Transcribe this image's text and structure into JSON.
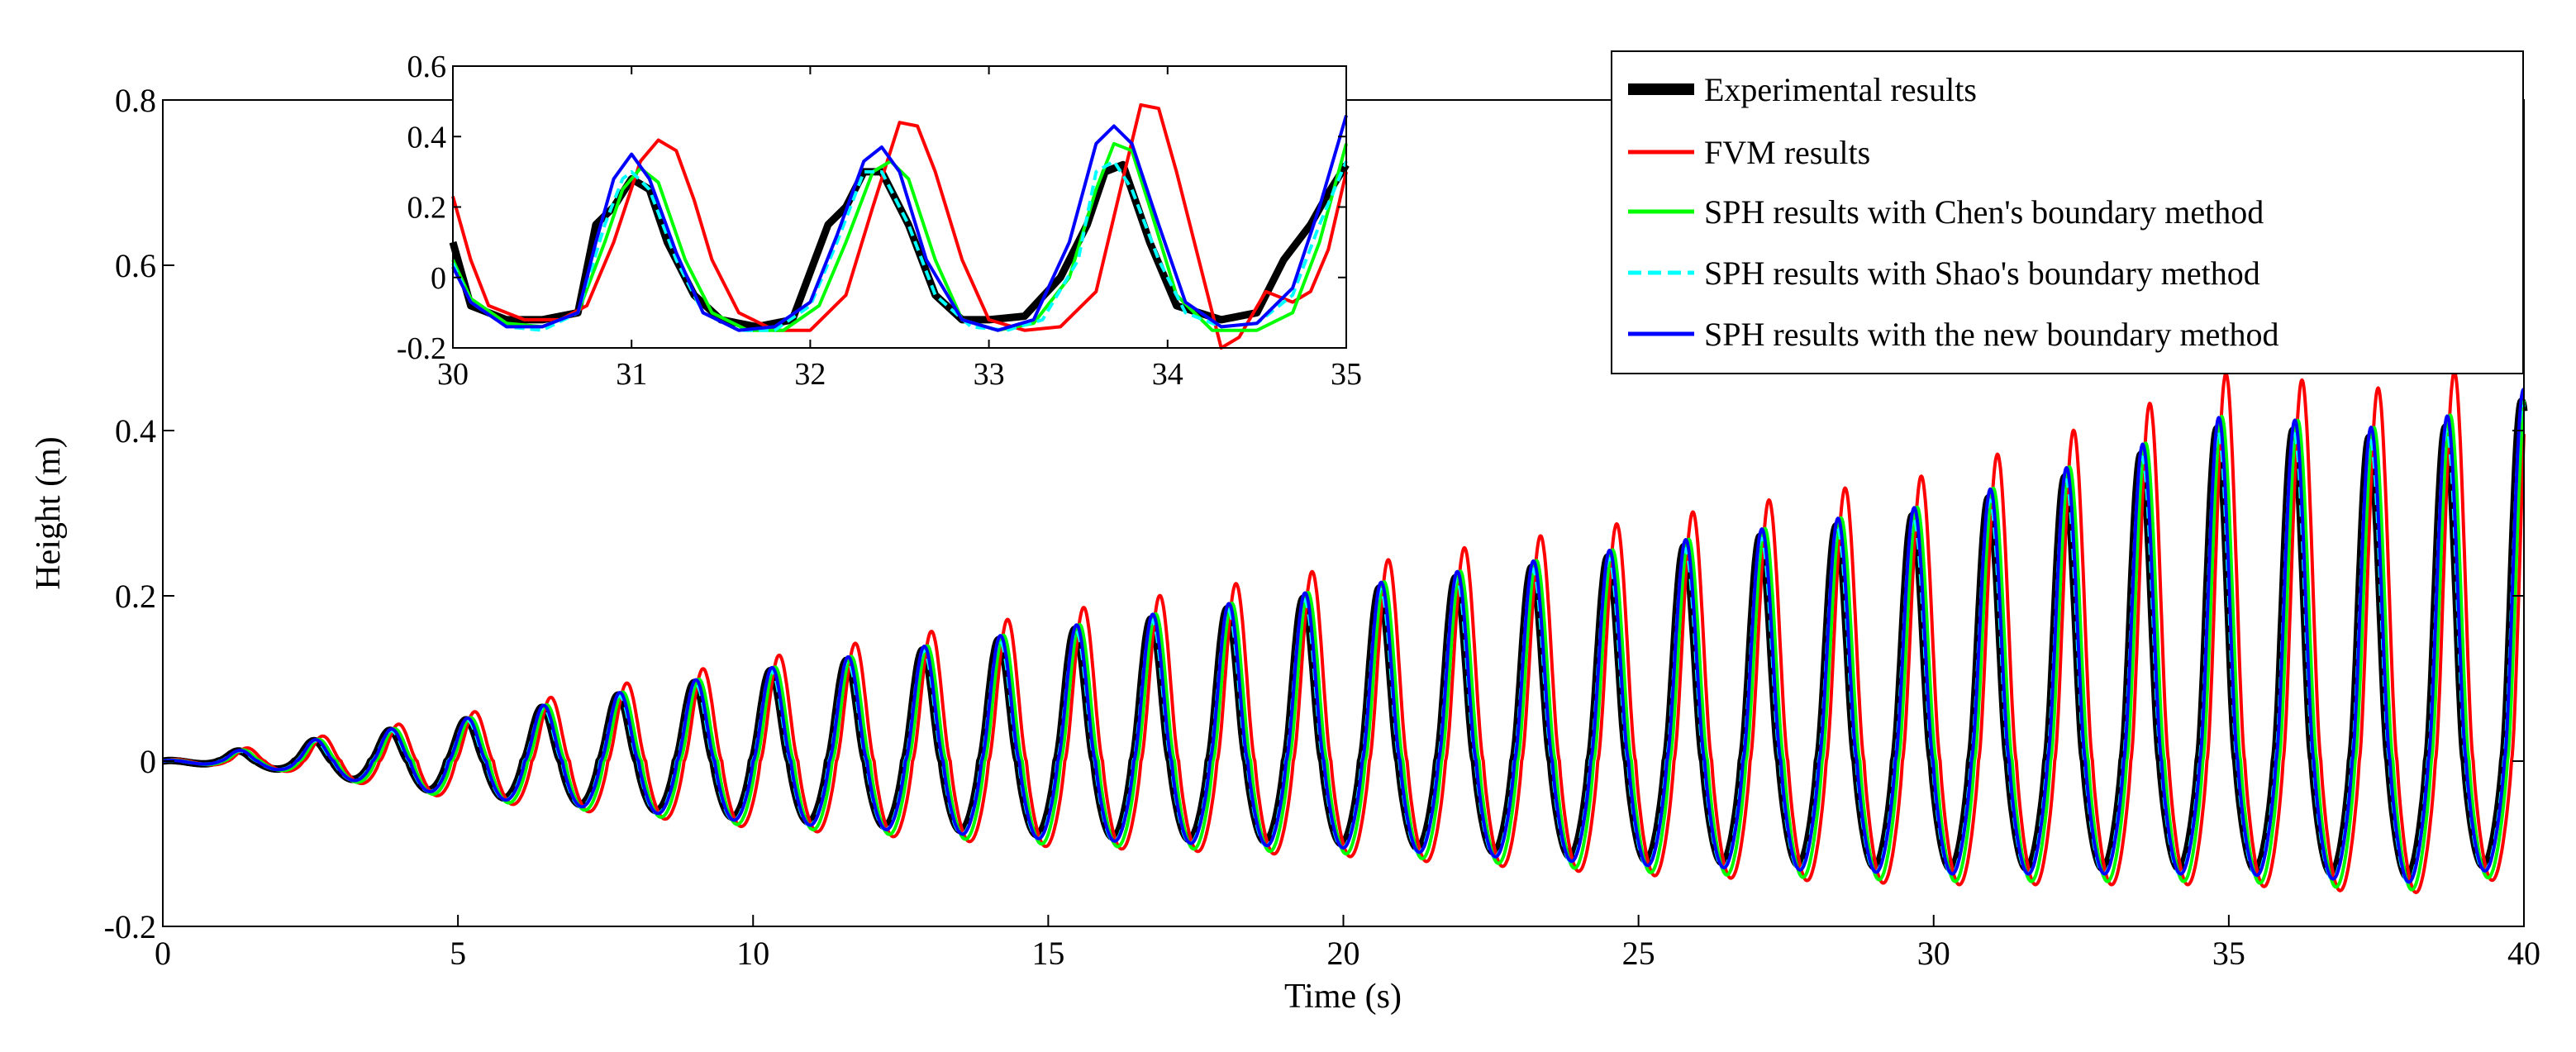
{
  "chart_data": [
    {
      "id": "main",
      "type": "line",
      "title": "",
      "xlabel": "Time (s)",
      "ylabel": "Height (m)",
      "xlim": [
        0,
        40
      ],
      "ylim": [
        -0.2,
        0.8
      ],
      "xticks": [
        0,
        5,
        10,
        15,
        20,
        25,
        30,
        35,
        40
      ],
      "yticks": [
        -0.2,
        0,
        0.2,
        0.4,
        0.6,
        0.8
      ],
      "xtick_labels": [
        "0",
        "5",
        "10",
        "15",
        "20",
        "25",
        "30",
        "35",
        "40"
      ],
      "ytick_labels": [
        "-0.2",
        "0",
        "0.2",
        "0.4",
        "0.6",
        "0.8"
      ],
      "grid": false,
      "legend_position": "top-right",
      "wave": {
        "period_s": 1.29,
        "amplitude_envelope_t": [
          0,
          2,
          5,
          10,
          15,
          20,
          25,
          30,
          33,
          35,
          38,
          40
        ],
        "amplitude_envelope_crest_m": [
          0.0,
          0.02,
          0.05,
          0.11,
          0.16,
          0.21,
          0.26,
          0.31,
          0.37,
          0.42,
          0.4,
          0.45
        ],
        "trough_envelope_t": [
          0,
          2,
          5,
          10,
          15,
          20,
          25,
          30,
          33,
          35,
          38,
          40
        ],
        "trough_envelope_m": [
          0.0,
          -0.01,
          -0.04,
          -0.07,
          -0.09,
          -0.1,
          -0.12,
          -0.13,
          -0.13,
          -0.13,
          -0.14,
          -0.12
        ]
      },
      "series": [
        {
          "name": "Experimental results",
          "color": "#000000",
          "dash": "solid",
          "phase_shift_s": -0.03,
          "crest_scale": 0.97,
          "trough_scale": 1.0
        },
        {
          "name": "FVM results",
          "color": "#ff0000",
          "dash": "solid",
          "phase_shift_s": 0.12,
          "crest_scale": 1.12,
          "trough_scale": 1.15
        },
        {
          "name": "SPH results with Chen's boundary method",
          "color": "#00ff00",
          "dash": "solid",
          "phase_shift_s": 0.05,
          "crest_scale": 1.0,
          "trough_scale": 1.12
        },
        {
          "name": "SPH results with Shao's boundary method",
          "color": "#00ffff",
          "dash": "dashed",
          "phase_shift_s": -0.01,
          "crest_scale": 0.96,
          "trough_scale": 1.05
        },
        {
          "name": "SPH results with the new boundary method",
          "color": "#0000ff",
          "dash": "solid",
          "phase_shift_s": 0.0,
          "crest_scale": 1.0,
          "trough_scale": 1.05
        }
      ]
    },
    {
      "id": "inset",
      "type": "line",
      "title": "",
      "xlabel": "",
      "ylabel": "",
      "xlim": [
        30,
        35
      ],
      "ylim": [
        -0.2,
        0.6
      ],
      "xticks": [
        30,
        31,
        32,
        33,
        34,
        35
      ],
      "yticks": [
        -0.2,
        0,
        0.2,
        0.4,
        0.6
      ],
      "xtick_labels": [
        "30",
        "31",
        "32",
        "33",
        "34",
        "35"
      ],
      "ytick_labels": [
        "-0.2",
        "0",
        "0.2",
        "0.4",
        "0.6"
      ],
      "grid": false,
      "series": [
        {
          "name": "Experimental results",
          "color": "#000000",
          "x": [
            30.0,
            30.1,
            30.3,
            30.5,
            30.7,
            30.8,
            30.9,
            31.0,
            31.1,
            31.2,
            31.35,
            31.5,
            31.7,
            31.9,
            32.1,
            32.2,
            32.3,
            32.4,
            32.55,
            32.7,
            32.85,
            33.0,
            33.2,
            33.4,
            33.55,
            33.65,
            33.75,
            33.9,
            34.05,
            34.3,
            34.5,
            34.65,
            34.8,
            34.9,
            35.0
          ],
          "y": [
            0.1,
            -0.08,
            -0.12,
            -0.12,
            -0.1,
            0.15,
            0.2,
            0.28,
            0.25,
            0.1,
            -0.05,
            -0.12,
            -0.14,
            -0.12,
            0.15,
            0.2,
            0.3,
            0.3,
            0.15,
            -0.05,
            -0.12,
            -0.12,
            -0.11,
            0.0,
            0.15,
            0.3,
            0.32,
            0.1,
            -0.08,
            -0.12,
            -0.1,
            0.05,
            0.15,
            0.24,
            0.32
          ]
        },
        {
          "name": "FVM results",
          "color": "#ff0000",
          "x": [
            30.0,
            30.1,
            30.2,
            30.4,
            30.6,
            30.75,
            30.9,
            31.05,
            31.15,
            31.25,
            31.35,
            31.45,
            31.6,
            31.8,
            32.0,
            32.2,
            32.35,
            32.5,
            32.6,
            32.7,
            32.85,
            33.0,
            33.2,
            33.4,
            33.6,
            33.75,
            33.85,
            33.95,
            34.05,
            34.2,
            34.3,
            34.4,
            34.55,
            34.7,
            34.8,
            34.9,
            35.0
          ],
          "y": [
            0.23,
            0.05,
            -0.08,
            -0.12,
            -0.12,
            -0.08,
            0.1,
            0.33,
            0.39,
            0.36,
            0.22,
            0.05,
            -0.1,
            -0.15,
            -0.15,
            -0.05,
            0.2,
            0.44,
            0.43,
            0.3,
            0.05,
            -0.12,
            -0.15,
            -0.14,
            -0.04,
            0.28,
            0.49,
            0.48,
            0.3,
            0.0,
            -0.2,
            -0.17,
            -0.04,
            -0.07,
            -0.04,
            0.08,
            0.3
          ]
        },
        {
          "name": "SPH results with Chen's boundary method",
          "color": "#00ff00",
          "x": [
            30.0,
            30.1,
            30.3,
            30.5,
            30.7,
            30.85,
            30.95,
            31.05,
            31.15,
            31.3,
            31.45,
            31.65,
            31.85,
            32.05,
            32.2,
            32.35,
            32.45,
            32.55,
            32.7,
            32.85,
            33.05,
            33.25,
            33.45,
            33.6,
            33.7,
            33.8,
            33.9,
            34.05,
            34.25,
            34.5,
            34.7,
            34.85,
            35.0
          ],
          "y": [
            0.05,
            -0.06,
            -0.13,
            -0.14,
            -0.1,
            0.1,
            0.25,
            0.31,
            0.27,
            0.05,
            -0.1,
            -0.15,
            -0.15,
            -0.08,
            0.1,
            0.3,
            0.33,
            0.28,
            0.05,
            -0.12,
            -0.15,
            -0.13,
            0.0,
            0.25,
            0.38,
            0.36,
            0.2,
            -0.05,
            -0.15,
            -0.15,
            -0.1,
            0.1,
            0.38
          ]
        },
        {
          "name": "SPH results with Shao's boundary method",
          "color": "#00ffff",
          "x": [
            30.0,
            30.1,
            30.3,
            30.5,
            30.7,
            30.85,
            30.95,
            31.0,
            31.1,
            31.25,
            31.4,
            31.6,
            31.8,
            32.0,
            32.15,
            32.3,
            32.4,
            32.55,
            32.7,
            32.9,
            33.1,
            33.3,
            33.5,
            33.6,
            33.7,
            33.8,
            33.95,
            34.1,
            34.3,
            34.5,
            34.7,
            34.85,
            35.0
          ],
          "y": [
            0.04,
            -0.07,
            -0.14,
            -0.15,
            -0.1,
            0.15,
            0.28,
            0.3,
            0.25,
            0.05,
            -0.1,
            -0.15,
            -0.15,
            -0.08,
            0.1,
            0.3,
            0.3,
            0.15,
            -0.05,
            -0.14,
            -0.15,
            -0.12,
            0.05,
            0.3,
            0.33,
            0.25,
            0.05,
            -0.1,
            -0.14,
            -0.13,
            -0.05,
            0.15,
            0.33
          ]
        },
        {
          "name": "SPH results with the new boundary method",
          "color": "#0000ff",
          "x": [
            30.0,
            30.1,
            30.3,
            30.5,
            30.7,
            30.8,
            30.9,
            31.0,
            31.1,
            31.25,
            31.4,
            31.6,
            31.8,
            32.0,
            32.15,
            32.3,
            32.4,
            32.5,
            32.65,
            32.85,
            33.05,
            33.25,
            33.45,
            33.6,
            33.7,
            33.8,
            33.95,
            34.1,
            34.3,
            34.5,
            34.7,
            34.85,
            35.0
          ],
          "y": [
            0.03,
            -0.07,
            -0.14,
            -0.14,
            -0.1,
            0.1,
            0.28,
            0.35,
            0.28,
            0.07,
            -0.1,
            -0.15,
            -0.14,
            -0.07,
            0.12,
            0.33,
            0.37,
            0.3,
            0.05,
            -0.12,
            -0.15,
            -0.12,
            0.1,
            0.38,
            0.43,
            0.38,
            0.15,
            -0.07,
            -0.14,
            -0.13,
            -0.03,
            0.2,
            0.46
          ]
        }
      ]
    }
  ]
}
